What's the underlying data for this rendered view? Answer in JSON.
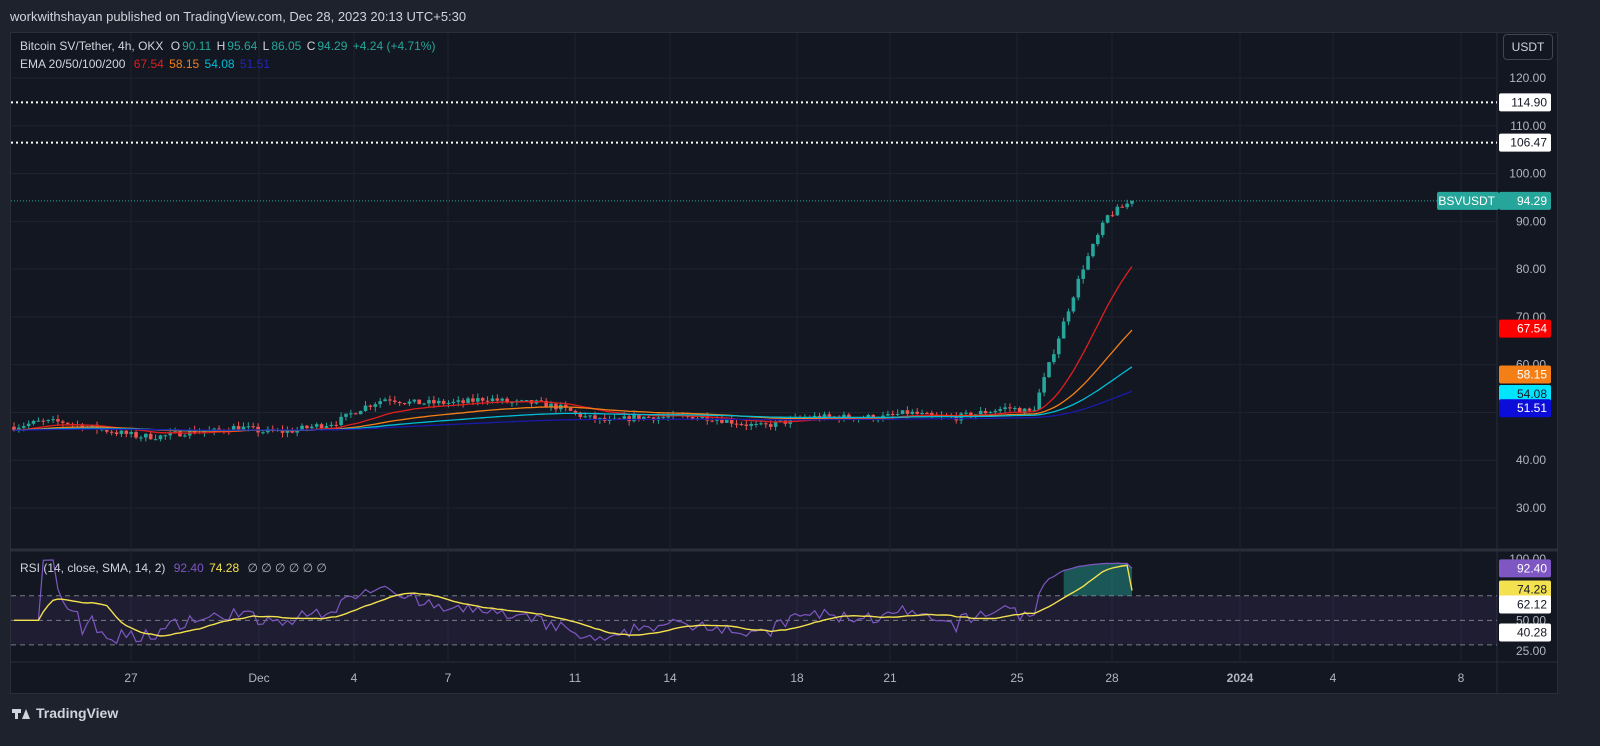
{
  "header": {
    "published": "workwithshayan published on TradingView.com, Dec 28, 2023 20:13 UTC+5:30"
  },
  "legend": {
    "symbol": "Bitcoin SV/Tether, 4h, OKX",
    "o_label": "O",
    "o": "90.11",
    "h_label": "H",
    "h": "95.64",
    "l_label": "L",
    "l": "86.05",
    "c_label": "C",
    "c": "94.29",
    "change": "+4.24 (+4.71%)",
    "ema_label": "EMA 20/50/100/200",
    "ema20": "67.54",
    "ema50": "58.15",
    "ema100": "54.08",
    "ema200": "51.51"
  },
  "rsi_legend": {
    "label": "RSI (14, close, SMA, 14, 2)",
    "rsi": "92.40",
    "sma": "74.28",
    "zeros": "∅ ∅ ∅ ∅ ∅ ∅"
  },
  "unit": "USDT",
  "price_axis": {
    "ticks": [
      "120.00",
      "110.00",
      "100.00",
      "90.00",
      "80.00",
      "70.00",
      "60.00",
      "40.00",
      "30.00"
    ]
  },
  "rsi_axis": {
    "ticks": [
      "100.00",
      "50.00",
      "25.00"
    ]
  },
  "time_axis": {
    "labels": [
      "27",
      "Dec",
      "4",
      "7",
      "11",
      "14",
      "18",
      "21",
      "25",
      "28",
      "2024",
      "4",
      "8"
    ]
  },
  "badges": {
    "level1": "114.90",
    "level2": "106.47",
    "symbol_tag": "BSVUSDT",
    "last": "94.29",
    "ema20": "67.54",
    "ema50": "58.15",
    "ema100": "54.08",
    "ema200": "51.51",
    "rsi": "92.40",
    "rsi_sma": "74.28",
    "rsi_upper": "62.12",
    "rsi_lower": "40.28"
  },
  "colors": {
    "up": "#26a69a",
    "down": "#ef5350",
    "ema20": "#e01e1e",
    "ema50": "#f57f17",
    "ema100": "#00bcd4",
    "ema200": "#1a1aa8",
    "rsi_line": "#7e57c2",
    "rsi_sma": "#f4e14f",
    "level": "#ffffff"
  },
  "chart_data": {
    "type": "candlestick",
    "title": "Bitcoin SV/Tether, 4h, OKX",
    "ylim": [
      23,
      125
    ],
    "horizontal_levels": [
      114.9,
      106.47
    ],
    "last_price": 94.29,
    "ema": {
      "ema20": 67.54,
      "ema50": 58.15,
      "ema100": 54.08,
      "ema200": 51.51
    },
    "close_series_approx": [
      47,
      48,
      48,
      47,
      46,
      45,
      45,
      46,
      46,
      47,
      46,
      46,
      47,
      48,
      51,
      53,
      52,
      52,
      52,
      53,
      52,
      52,
      51,
      49,
      48,
      49,
      49,
      49,
      49,
      48,
      47,
      48,
      49,
      49,
      49,
      49,
      50,
      49,
      49,
      50,
      51,
      50,
      65,
      80,
      91,
      94.29
    ],
    "rsi": {
      "value": 92.4,
      "sma": 74.28,
      "upper_band": 62.12,
      "lower_band": 40.28,
      "ylim": [
        20,
        105
      ]
    }
  },
  "footer": {
    "brand": "TradingView"
  }
}
